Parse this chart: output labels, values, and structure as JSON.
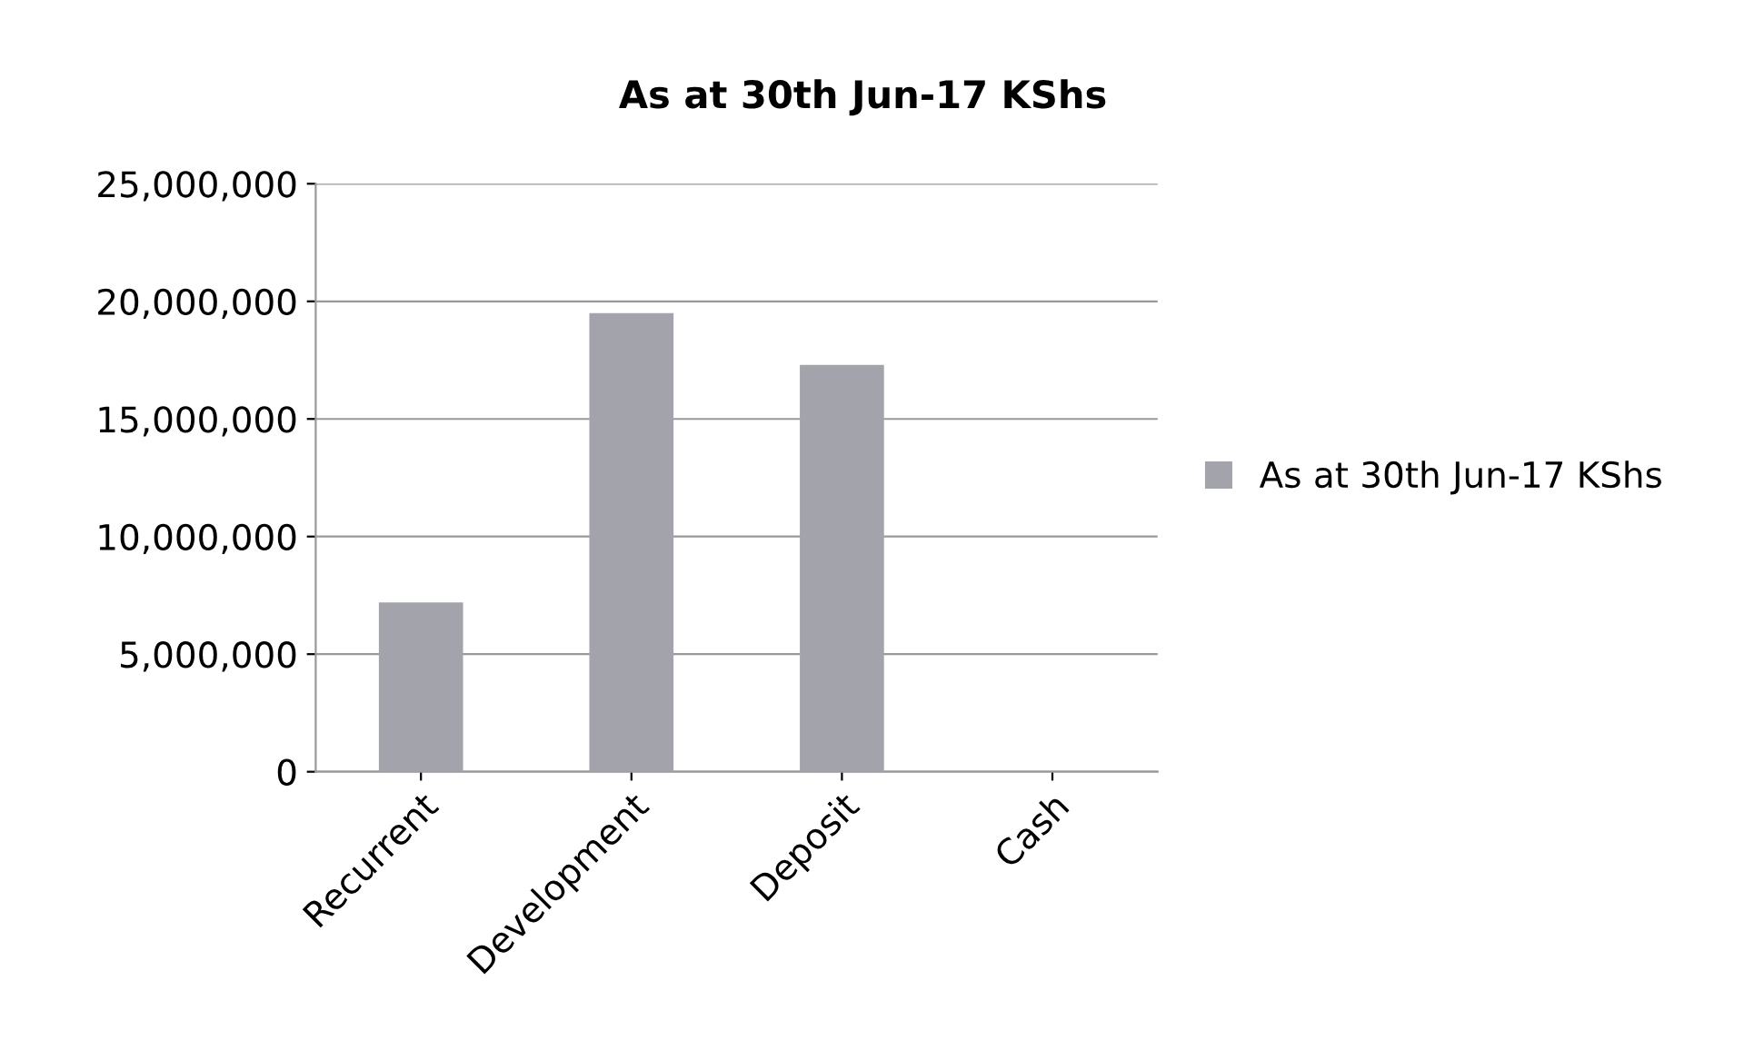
{
  "chart_data": {
    "type": "bar",
    "title": "As at 30th Jun-17 KShs",
    "categories": [
      "Recurrent",
      "Development",
      "Deposit",
      "Cash"
    ],
    "series": [
      {
        "name": "As at 30th Jun-17 KShs",
        "color": "#a3a3ab",
        "values": [
          7200000,
          19500000,
          17300000,
          0
        ]
      }
    ],
    "ylim": [
      0,
      25000000
    ],
    "yticks": [
      {
        "value": 0,
        "label": "0"
      },
      {
        "value": 5000000,
        "label": "5,000,000"
      },
      {
        "value": 10000000,
        "label": "10,000,000"
      },
      {
        "value": 15000000,
        "label": "15,000,000"
      },
      {
        "value": 20000000,
        "label": "20,000,000"
      },
      {
        "value": 25000000,
        "label": "25,000,000"
      }
    ],
    "grid": "y",
    "legend": "right"
  }
}
